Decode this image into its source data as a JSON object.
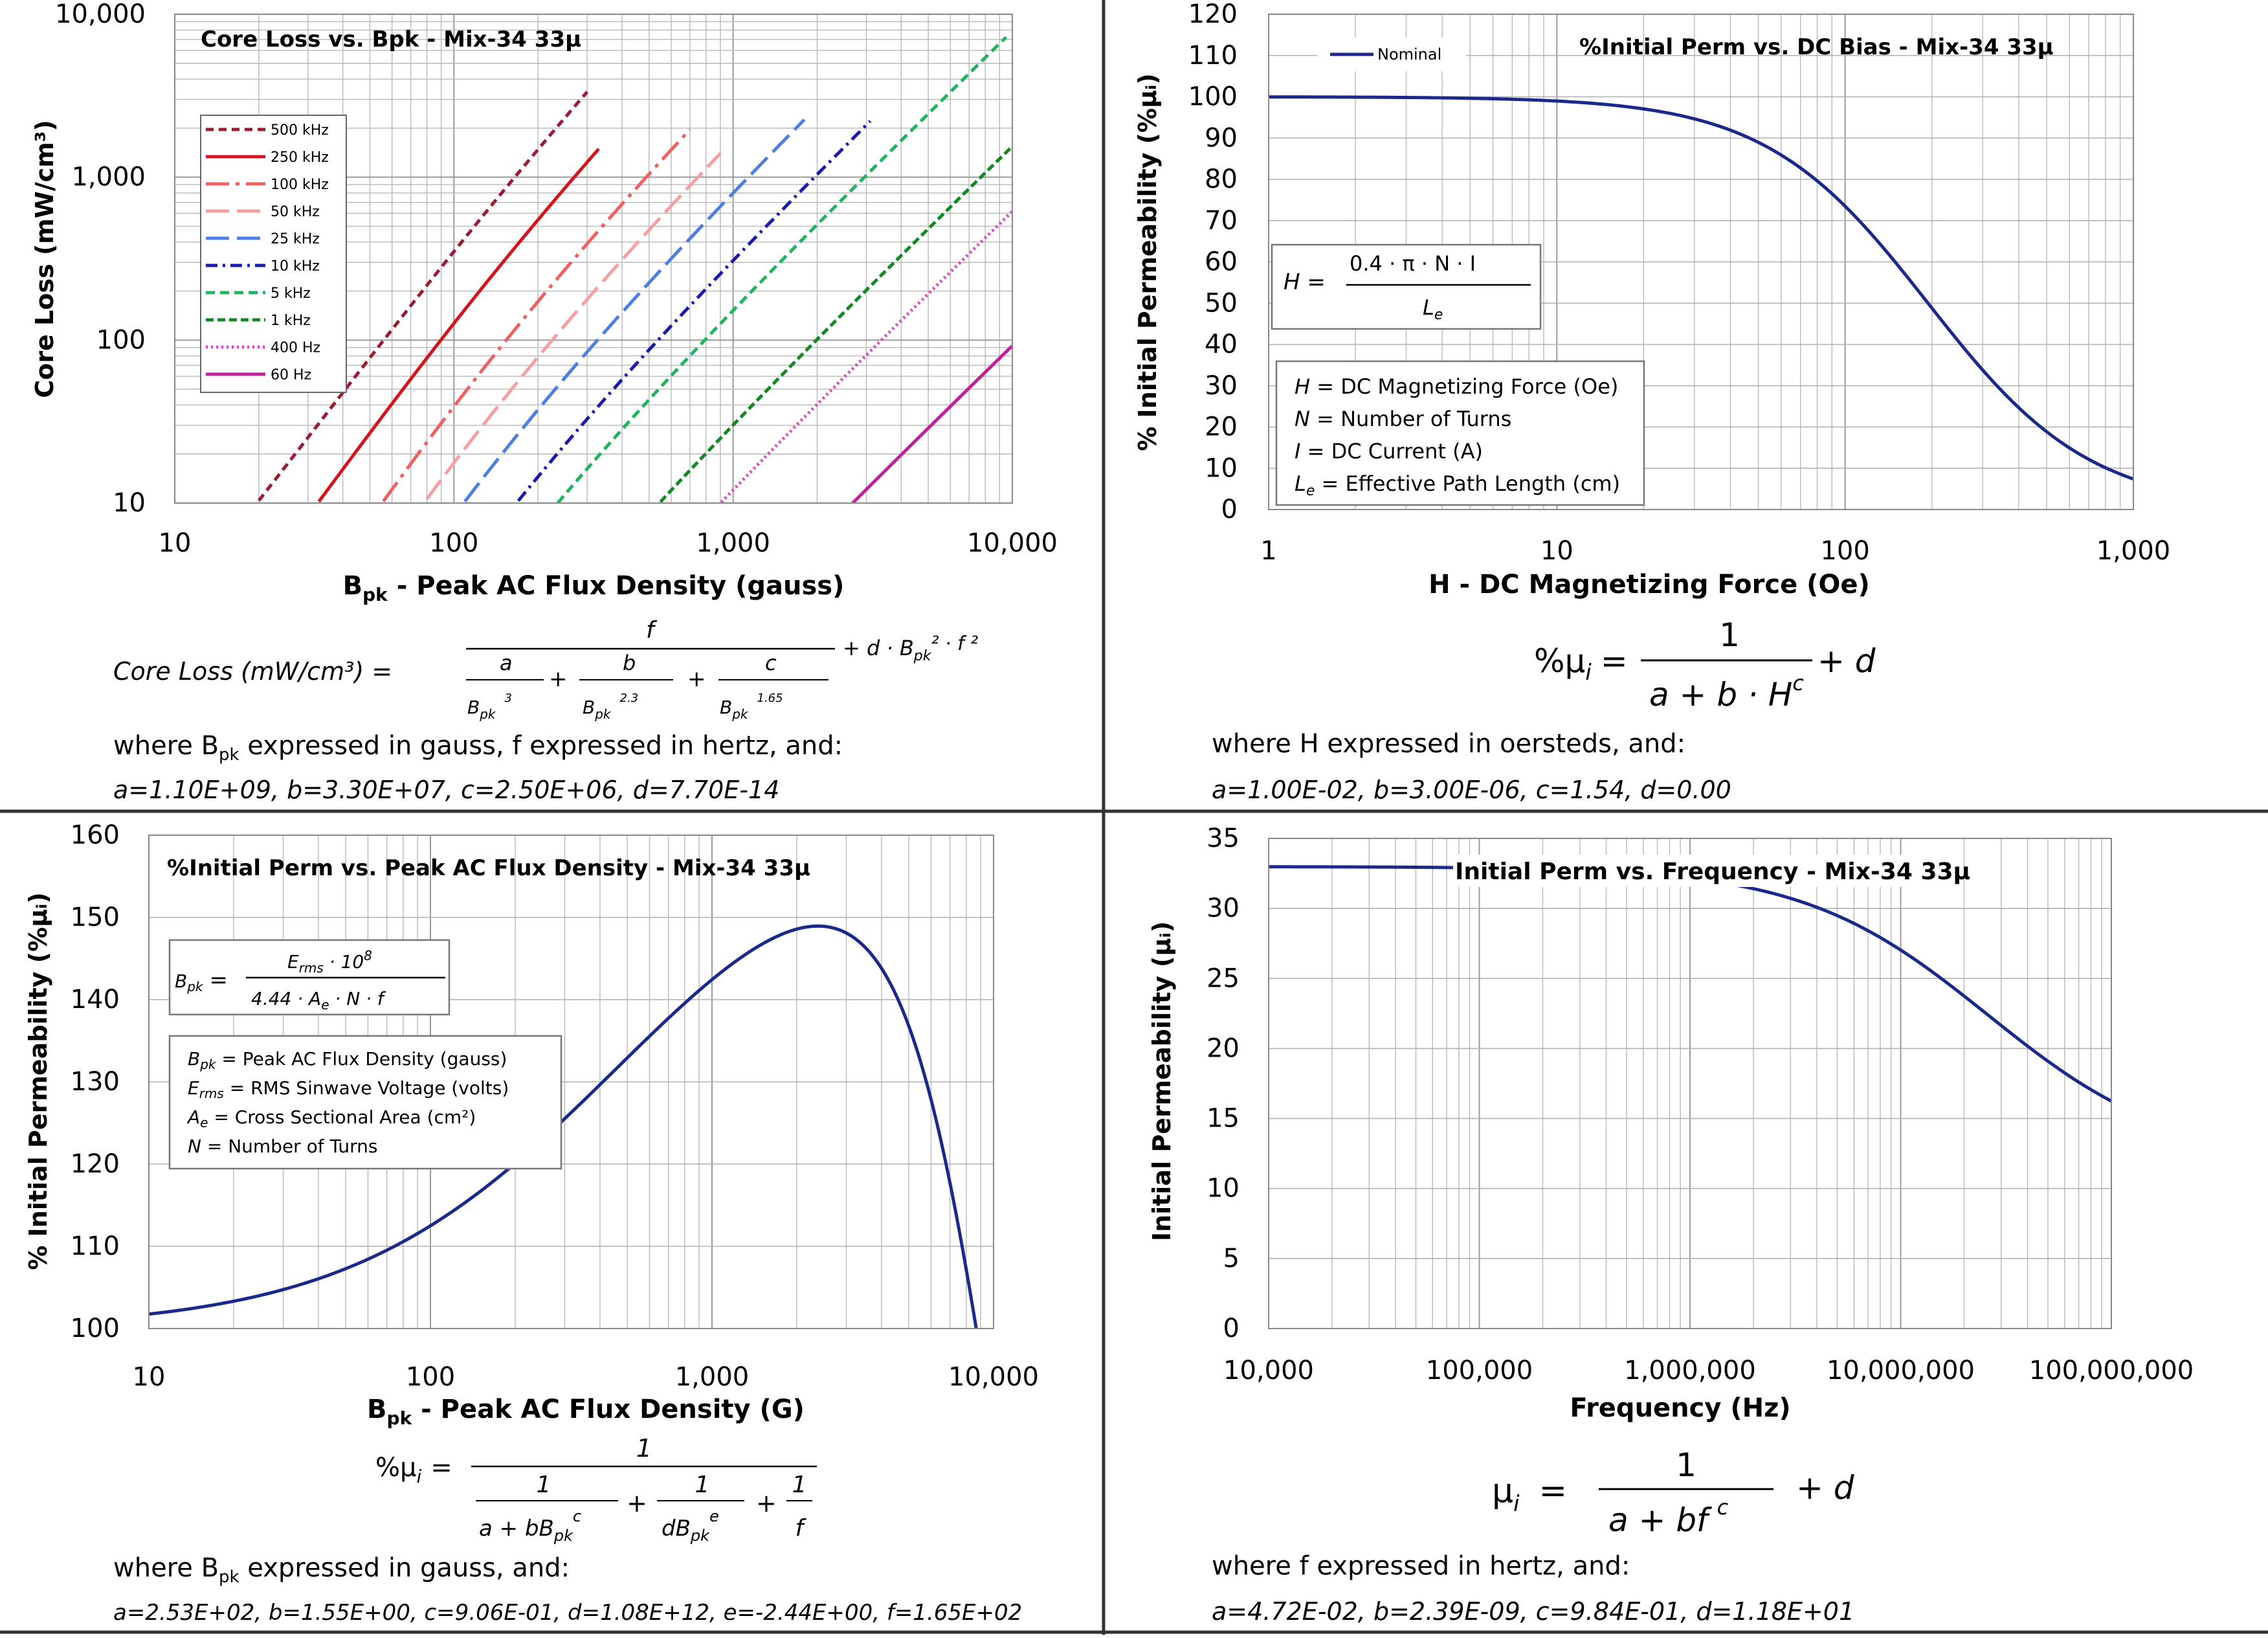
{
  "chart_data": [
    {
      "type": "line",
      "title": "Core Loss vs. Bpk - Mix-34  33µ",
      "xlabel_main": "B",
      "xlabel_sub": "pk",
      "xlabel_rest": " - Peak AC Flux Density (gauss)",
      "ylabel": "Core Loss (mW/cm³)",
      "xscale": "log",
      "yscale": "log",
      "xlim": [
        10,
        10000
      ],
      "ylim": [
        10,
        10000
      ],
      "xticks": [
        "10",
        "100",
        "1,000",
        "10,000"
      ],
      "yticks": [
        "10",
        "100",
        "1,000",
        "10,000"
      ],
      "grid": true,
      "legend_position": "upper-left",
      "coefficients": {
        "a": 1100000000.0,
        "b": 33000000.0,
        "c": 2500000.0,
        "d": 7.7e-14
      },
      "series": [
        {
          "name": "500 kHz",
          "freq_hz": 500000,
          "color": "#9b1b30",
          "dash": "12,8",
          "x_start": 18,
          "x_end": 300
        },
        {
          "name": "250 kHz",
          "freq_hz": 250000,
          "color": "#d4141a",
          "dash": "",
          "x_start": 30,
          "x_end": 330
        },
        {
          "name": "100 kHz",
          "freq_hz": 100000,
          "color": "#f06060",
          "dash": "36,10,6,10",
          "x_start": 55,
          "x_end": 700
        },
        {
          "name": "50 kHz",
          "freq_hz": 50000,
          "color": "#f4a0a0",
          "dash": "36,12",
          "x_start": 80,
          "x_end": 900
        },
        {
          "name": "25 kHz",
          "freq_hz": 25000,
          "color": "#4d7fe0",
          "dash": "36,12",
          "x_start": 100,
          "x_end": 1800
        },
        {
          "name": "10 kHz",
          "freq_hz": 10000,
          "color": "#1a1ab0",
          "dash": "18,8,4,8",
          "x_start": 170,
          "x_end": 3100
        },
        {
          "name": "5 kHz",
          "freq_hz": 5000,
          "color": "#1fb560",
          "dash": "14,8",
          "x_start": 230,
          "x_end": 9500
        },
        {
          "name": "1 kHz",
          "freq_hz": 1000,
          "color": "#108a20",
          "dash": "12,6",
          "x_start": 500,
          "x_end": 10000
        },
        {
          "name": "400 Hz",
          "freq_hz": 400,
          "color": "#e040c0",
          "dash": "3,5",
          "x_start": 840,
          "x_end": 10000
        },
        {
          "name": "60 Hz",
          "freq_hz": 60,
          "color": "#c0209a",
          "dash": "",
          "x_start": 2500,
          "x_end": 10000
        }
      ],
      "equation": {
        "lhs": "Core Loss (mW/cm³)  =",
        "num": "f",
        "t1": "a",
        "t2": "b",
        "t3": "c",
        "d1": "B",
        "s1": "pk",
        "e1": "3",
        "d2": "B",
        "s2": "pk",
        "e2": "2.3",
        "d3": "B",
        "s3": "pk",
        "e3": "1.65",
        "tail": "+ d · B",
        "tail_sub": "pk",
        "tail_rest": "² · f ²",
        "where": "where B",
        "where_sub": "pk",
        "where_rest": " expressed in gauss, f  expressed in hertz, and:",
        "coef_line": "a=1.10E+09,   b=3.30E+07,  c=2.50E+06,  d=7.70E-14"
      }
    },
    {
      "type": "line",
      "title": "%Initial Perm vs. DC Bias - Mix-34  33µ",
      "xlabel": "H - DC Magnetizing Force (Oe)",
      "ylabel": "% Initial Permeability (%µᵢ)",
      "xscale": "log",
      "xlim": [
        1,
        1000
      ],
      "ylim": [
        0,
        120
      ],
      "xticks": [
        "1",
        "10",
        "100",
        "1,000"
      ],
      "yticks": [
        "0",
        "10",
        "20",
        "30",
        "40",
        "50",
        "60",
        "70",
        "80",
        "90",
        "100",
        "110",
        "120"
      ],
      "grid": true,
      "legend_position": "upper-left",
      "coefficients": {
        "a": 0.01,
        "b": 3e-06,
        "c": 1.54,
        "d": 0.0
      },
      "series": [
        {
          "name": "Nominal",
          "color": "#1b2a8a"
        }
      ],
      "box_formula": {
        "lhs": "H =",
        "num": "0.4 · π  · N · I",
        "den": "L",
        "den_sub": "e"
      },
      "box_lines": [
        [
          "H",
          " = DC Magnetizing Force (Oe)"
        ],
        [
          "N",
          " = Number of Turns"
        ],
        [
          "I",
          " = DC Current (A)"
        ],
        [
          "L",
          " = Effective Path Length (cm)"
        ]
      ],
      "equation": {
        "lhs": "%µ",
        "lhs_sub": "i",
        "eq": "=",
        "num": "1",
        "den": "a + b · H",
        "den_sup": "c",
        "tail": "+ d",
        "where": "where H  expressed in oersteds, and:",
        "coef_line": "a=1.00E-02,  b=3.00E-06,  c=1.54,  d=0.00"
      }
    },
    {
      "type": "line",
      "title": "%Initial Perm vs. Peak AC Flux Density - Mix-34  33µ",
      "xlabel_main": "B",
      "xlabel_sub": "pk",
      "xlabel_rest": " - Peak AC Flux Density (G)",
      "ylabel": "% Initial Permeability (%µᵢ)",
      "xscale": "log",
      "xlim": [
        10,
        10000
      ],
      "ylim": [
        100,
        160
      ],
      "xticks": [
        "10",
        "100",
        "1,000",
        "10,000"
      ],
      "yticks": [
        "100",
        "110",
        "120",
        "130",
        "140",
        "150",
        "160"
      ],
      "grid": true,
      "coefficients": {
        "a": 253,
        "b": 1.55,
        "c": 0.906,
        "d": 1080000000000.0,
        "e": -2.44,
        "f": 165
      },
      "series": [
        {
          "name": "",
          "color": "#1b2a8a"
        }
      ],
      "box_formula": {
        "lhs": "B",
        "lhs_sub": "pk",
        "eq": "=",
        "num": "E",
        "num_sub": "rms",
        "num_rest": " · 10",
        "num_sup": "8",
        "den": "4.44 · A",
        "den_sub": "e",
        "den_rest": " · N · f"
      },
      "box_lines": [
        [
          "B",
          "pk",
          " = Peak AC Flux Density (gauss)"
        ],
        [
          "E",
          "rms",
          " = RMS Sinwave Voltage (volts)"
        ],
        [
          "A",
          "e",
          " = Cross Sectional Area (cm²)"
        ],
        [
          "N",
          "",
          " = Number of Turns"
        ]
      ],
      "equation": {
        "lhs": "%µ",
        "lhs_sub": "i",
        "eq": "=",
        "num": "1",
        "f1n": "1",
        "f1d": "a + bB",
        "f1s": "pk",
        "f1e": "c",
        "f2n": "1",
        "f2d": "dB",
        "f2s": "pk",
        "f2e": "e",
        "f3n": "1",
        "f3d": "f",
        "where": "where B",
        "where_sub": "pk",
        "where_rest": " expressed in gauss, and:",
        "coef_line": "a=2.53E+02, b=1.55E+00, c=9.06E-01, d=1.08E+12, e=-2.44E+00, f=1.65E+02"
      }
    },
    {
      "type": "line",
      "title": "Initial Perm vs. Frequency - Mix-34  33µ",
      "xlabel": "Frequency (Hz)",
      "ylabel": "Initial Permeability (µᵢ)",
      "xscale": "log",
      "xlim": [
        10000,
        100000000
      ],
      "ylim": [
        0,
        35
      ],
      "xticks": [
        "10,000",
        "100,000",
        "1,000,000",
        "10,000,000",
        "100,000,000"
      ],
      "yticks": [
        "0",
        "5",
        "10",
        "15",
        "20",
        "25",
        "30",
        "35"
      ],
      "grid": true,
      "coefficients": {
        "a": 0.0472,
        "b": 2.39e-09,
        "c": 0.984,
        "d": 11.8
      },
      "series": [
        {
          "name": "",
          "color": "#1b2a8a"
        }
      ],
      "equation": {
        "lhs": "µ",
        "lhs_sub": "i",
        "eq": "=",
        "num": "1",
        "den": "a  +  bf",
        "den_sup": "c",
        "tail": "+  d",
        "where": "where f  expressed in hertz, and:",
        "coef_line": "a=4.72E-02,   b=2.39E-09,  c=9.84E-01,   d=1.18E+01"
      }
    }
  ]
}
